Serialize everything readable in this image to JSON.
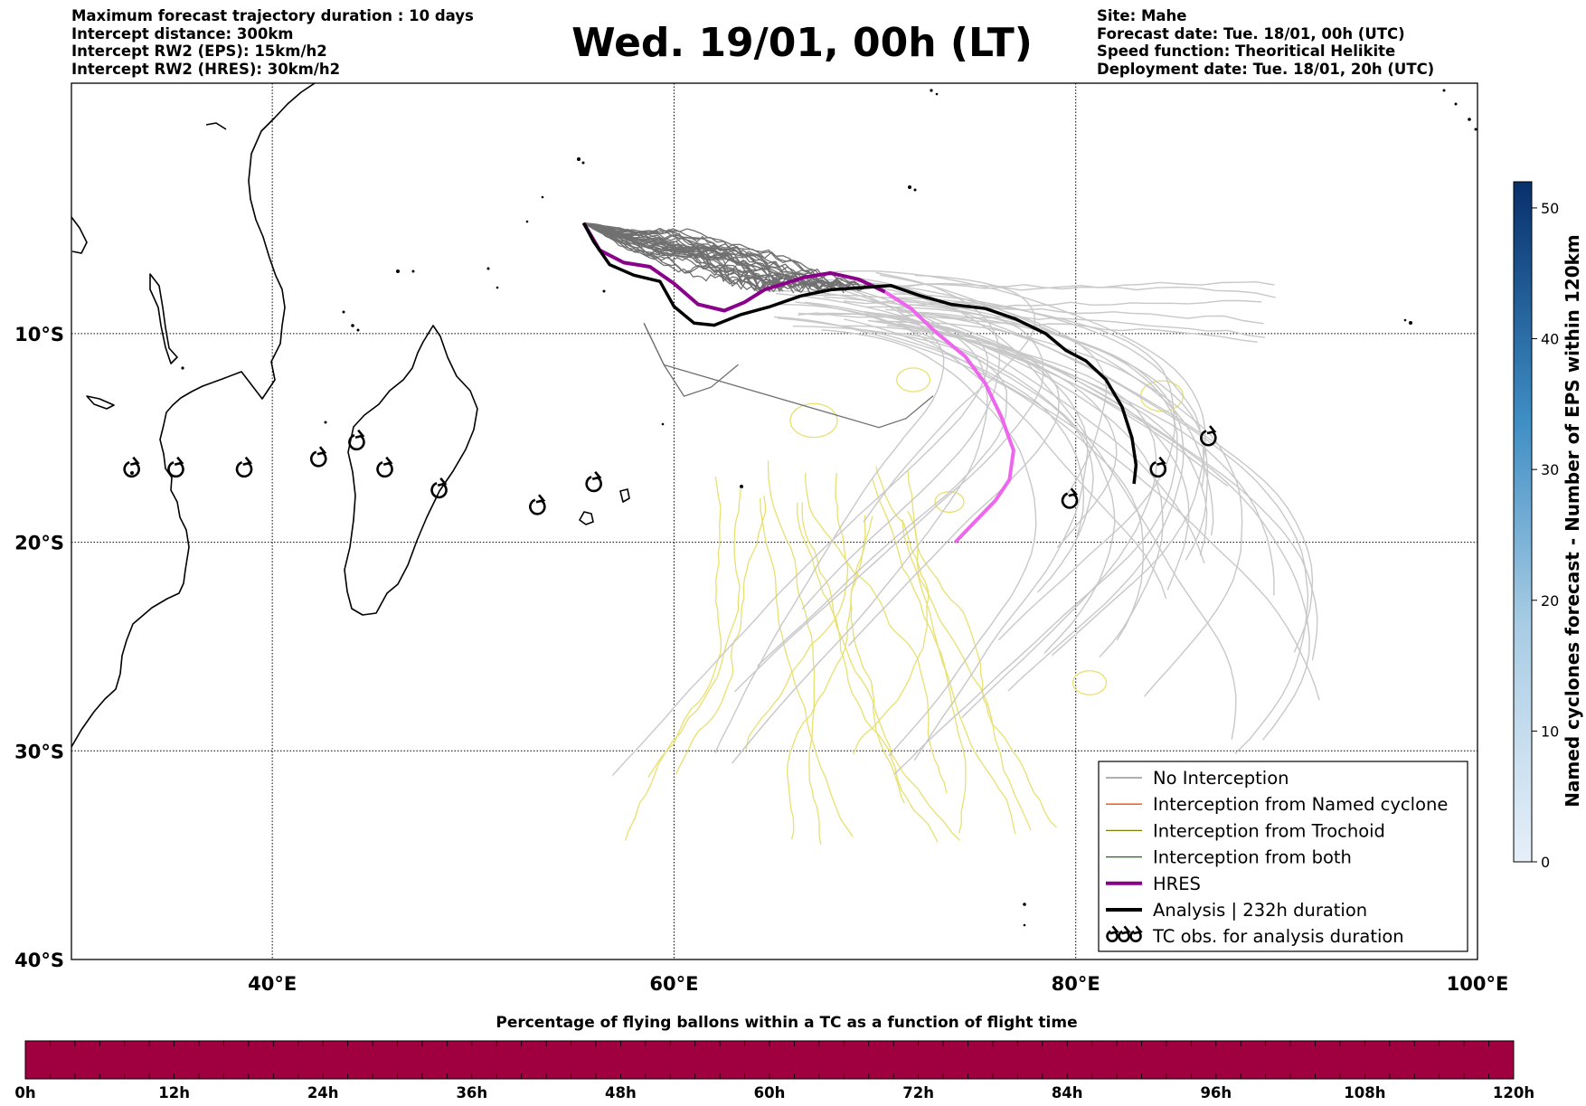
{
  "header_left": [
    "Maximum forecast trajectory duration : 10 days",
    "Intercept distance: 300km",
    "Intercept RW2 (EPS):  15km/h2",
    "Intercept RW2 (HRES): 30km/h2"
  ],
  "header_right": [
    "Site: Mahe",
    "Forecast date: Tue. 18/01, 00h (UTC)",
    "Speed function: Theoritical Helikite",
    "Deployment date: Tue. 18/01, 20h (UTC)"
  ],
  "title": "Wed. 19/01, 00h (LT)",
  "map": {
    "lon_range": [
      30,
      100
    ],
    "lat_range": [
      -40,
      2
    ],
    "lat_gridlines": [
      {
        "lat": -10,
        "label": "10°S"
      },
      {
        "lat": -20,
        "label": "20°S"
      },
      {
        "lat": -30,
        "label": "30°S"
      },
      {
        "lat": -40,
        "label": "40°S"
      }
    ],
    "lon_gridlines": [
      {
        "lon": 40,
        "label": "40°E"
      },
      {
        "lon": 60,
        "label": "60°E"
      },
      {
        "lon": 80,
        "label": "80°E"
      },
      {
        "lon": 100,
        "label": "100°E"
      }
    ],
    "grid": "dotted",
    "colors": {
      "eps_no_interception": "#707070",
      "eps_later": "#c8c8c8",
      "eps_yellow": "#e8e070",
      "hres_early": "#8b008b",
      "hres_late": "#ee66ee",
      "analysis": "#000000"
    },
    "hres_track": [
      [
        55.5,
        -4.7
      ],
      [
        56.3,
        -6.0
      ],
      [
        57.5,
        -6.6
      ],
      [
        58.8,
        -6.8
      ],
      [
        60.0,
        -7.6
      ],
      [
        61.2,
        -8.6
      ],
      [
        62.5,
        -8.9
      ],
      [
        63.5,
        -8.5
      ],
      [
        64.5,
        -7.9
      ],
      [
        65.5,
        -7.6
      ],
      [
        66.5,
        -7.3
      ],
      [
        67.8,
        -7.1
      ],
      [
        69.2,
        -7.4
      ],
      [
        70.5,
        -8.0
      ],
      [
        71.8,
        -8.8
      ],
      [
        73.0,
        -9.9
      ],
      [
        74.5,
        -11.1
      ],
      [
        75.5,
        -12.4
      ],
      [
        76.3,
        -14.0
      ],
      [
        76.9,
        -15.6
      ],
      [
        76.7,
        -17.0
      ],
      [
        76.0,
        -18.0
      ],
      [
        75.0,
        -19.0
      ],
      [
        74.0,
        -20.0
      ]
    ],
    "hres_split_index": 13,
    "analysis_track": [
      [
        55.5,
        -4.7
      ],
      [
        56.0,
        -5.6
      ],
      [
        56.8,
        -6.7
      ],
      [
        58.0,
        -7.2
      ],
      [
        59.3,
        -7.5
      ],
      [
        60.0,
        -8.7
      ],
      [
        61.0,
        -9.5
      ],
      [
        62.0,
        -9.6
      ],
      [
        63.3,
        -9.1
      ],
      [
        64.8,
        -8.7
      ],
      [
        66.3,
        -8.2
      ],
      [
        67.8,
        -7.9
      ],
      [
        69.3,
        -7.8
      ],
      [
        70.8,
        -7.7
      ],
      [
        72.3,
        -8.2
      ],
      [
        73.8,
        -8.6
      ],
      [
        75.5,
        -8.8
      ],
      [
        77.0,
        -9.3
      ],
      [
        78.5,
        -10.0
      ],
      [
        79.5,
        -10.8
      ],
      [
        80.5,
        -11.3
      ],
      [
        81.5,
        -12.2
      ],
      [
        82.3,
        -13.5
      ],
      [
        82.8,
        -15.0
      ],
      [
        83.0,
        -16.3
      ],
      [
        82.9,
        -17.2
      ]
    ],
    "tc_obs": [
      [
        33.0,
        -16.5
      ],
      [
        35.2,
        -16.5
      ],
      [
        38.6,
        -16.5
      ],
      [
        42.3,
        -16.0
      ],
      [
        44.2,
        -15.2
      ],
      [
        45.6,
        -16.5
      ],
      [
        48.3,
        -17.5
      ],
      [
        53.2,
        -18.3
      ],
      [
        56.0,
        -17.2
      ],
      [
        79.7,
        -18.0
      ],
      [
        84.1,
        -16.5
      ],
      [
        86.6,
        -15.0
      ]
    ]
  },
  "legend": [
    {
      "label": "No Interception",
      "color": "#808080",
      "width": 1.3,
      "type": "line"
    },
    {
      "label": "Interception from Named cyclone",
      "color": "#ff4500",
      "width": 1.3,
      "type": "line"
    },
    {
      "label": "Interception from Trochoid",
      "color": "#808000",
      "width": 1.3,
      "type": "line"
    },
    {
      "label": "Interception from both",
      "color": "#008000",
      "width": 1.3,
      "type": "line"
    },
    {
      "label": "HRES",
      "color": "#8b008b",
      "width": 4,
      "type": "line"
    },
    {
      "label": "Analysis | 232h duration",
      "color": "#000000",
      "width": 4,
      "type": "line"
    },
    {
      "label": "TC obs. for analysis duration",
      "color": "#000000",
      "width": 0,
      "type": "symbol"
    }
  ],
  "colorbar_right": {
    "label": "Named cyclones forecast - Number of EPS within 120km",
    "min": 0,
    "max": 52,
    "ticks": [
      "0",
      "10",
      "20",
      "30",
      "40",
      "50"
    ],
    "tick_values": [
      0,
      10,
      20,
      30,
      40,
      50
    ],
    "color_low": "#e6eff9",
    "color_high": "#08306b"
  },
  "bottom_bar": {
    "title": "Percentage of flying ballons within a TC as a function of flight time",
    "color": "#a00040",
    "ticks": [
      "0h",
      "12h",
      "24h",
      "36h",
      "48h",
      "60h",
      "72h",
      "84h",
      "96h",
      "108h",
      "120h"
    ]
  }
}
